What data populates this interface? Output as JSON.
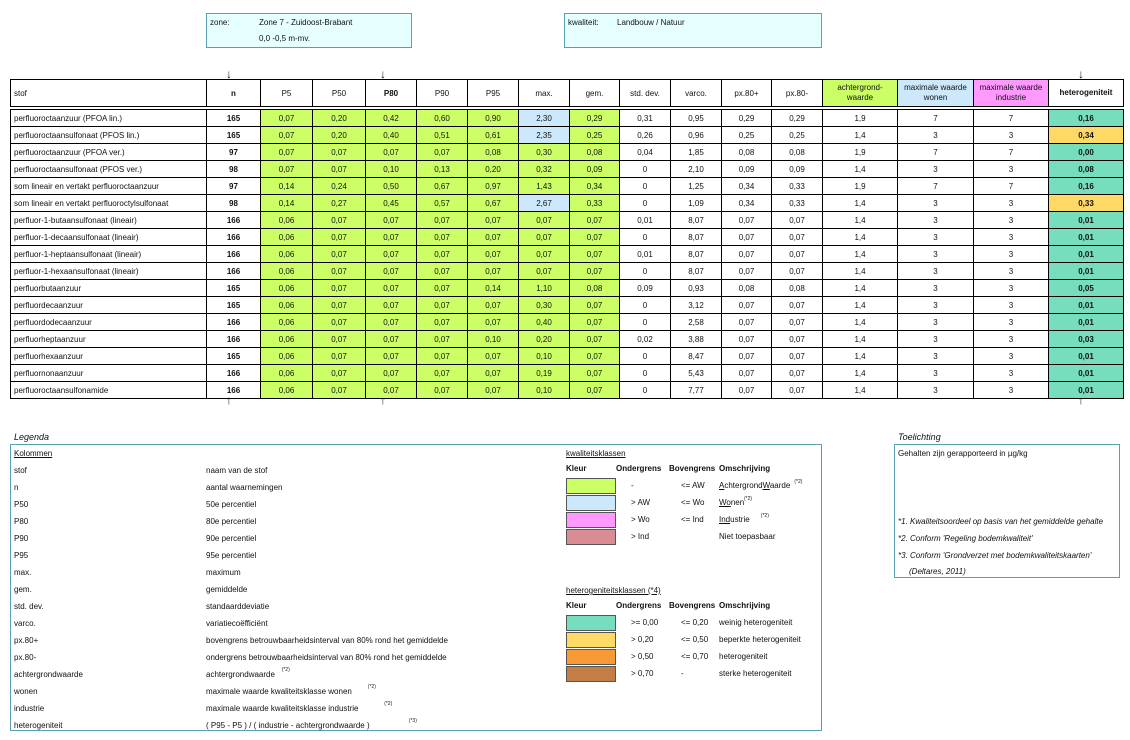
{
  "header": {
    "zone_label": "zone:",
    "zone_name": "Zone 7 - Zuidoost-Brabant",
    "zone_depth": "0,0 -0,5 m-mv.",
    "quality_label": "kwaliteit:",
    "quality_value": "Landbouw / Natuur"
  },
  "columns": [
    "stof",
    "n",
    "P5",
    "P50",
    "P80",
    "P90",
    "P95",
    "max.",
    "gem.",
    "std. dev.",
    "varco.",
    "px.80+",
    "px.80-",
    "achtergrond-waarde",
    "maximale waarde wonen",
    "maximale waarde industrie",
    "heterogeniteit"
  ],
  "rows": [
    [
      "perfluoroctaanzuur (PFOA lin.)",
      "165",
      "0,07",
      "0,20",
      "0,42",
      "0,60",
      "0,90",
      "2,30",
      "0,29",
      "0,31",
      "0,95",
      "0,29",
      "0,29",
      "1,9",
      "7",
      "7",
      "0,16"
    ],
    [
      "perfluoroctaansulfonaat (PFOS lin.)",
      "165",
      "0,07",
      "0,20",
      "0,40",
      "0,51",
      "0,61",
      "2,35",
      "0,25",
      "0,26",
      "0,96",
      "0,25",
      "0,25",
      "1,4",
      "3",
      "3",
      "0,34"
    ],
    [
      "perfluoroctaanzuur (PFOA ver.)",
      "97",
      "0,07",
      "0,07",
      "0,07",
      "0,07",
      "0,08",
      "0,30",
      "0,08",
      "0,04",
      "1,85",
      "0,08",
      "0,08",
      "1,9",
      "7",
      "7",
      "0,00"
    ],
    [
      "perfluoroctaansulfonaat (PFOS ver.)",
      "98",
      "0,07",
      "0,07",
      "0,10",
      "0,13",
      "0,20",
      "0,32",
      "0,09",
      "0",
      "2,10",
      "0,09",
      "0,09",
      "1,4",
      "3",
      "3",
      "0,08"
    ],
    [
      "som lineair en vertakt perfluoroctaanzuur",
      "97",
      "0,14",
      "0,24",
      "0,50",
      "0,67",
      "0,97",
      "1,43",
      "0,34",
      "0",
      "1,25",
      "0,34",
      "0,33",
      "1,9",
      "7",
      "7",
      "0,16"
    ],
    [
      "som lineair en vertakt perfluoroctylsulfonaat",
      "98",
      "0,14",
      "0,27",
      "0,45",
      "0,57",
      "0,67",
      "2,67",
      "0,33",
      "0",
      "1,09",
      "0,34",
      "0,33",
      "1,4",
      "3",
      "3",
      "0,33"
    ],
    [
      "perfluor-1-butaansulfonaat (lineair)",
      "166",
      "0,06",
      "0,07",
      "0,07",
      "0,07",
      "0,07",
      "0,07",
      "0,07",
      "0,01",
      "8,07",
      "0,07",
      "0,07",
      "1,4",
      "3",
      "3",
      "0,01"
    ],
    [
      "perfluor-1-decaansulfonaat (lineair)",
      "166",
      "0,06",
      "0,07",
      "0,07",
      "0,07",
      "0,07",
      "0,07",
      "0,07",
      "0",
      "8,07",
      "0,07",
      "0,07",
      "1,4",
      "3",
      "3",
      "0,01"
    ],
    [
      "perfluor-1-heptaansulfonaat  (lineair)",
      "166",
      "0,06",
      "0,07",
      "0,07",
      "0,07",
      "0,07",
      "0,07",
      "0,07",
      "0,01",
      "8,07",
      "0,07",
      "0,07",
      "1,4",
      "3",
      "3",
      "0,01"
    ],
    [
      "perfluor-1-hexaansulfonaat (lineair)",
      "166",
      "0,06",
      "0,07",
      "0,07",
      "0,07",
      "0,07",
      "0,07",
      "0,07",
      "0",
      "8,07",
      "0,07",
      "0,07",
      "1,4",
      "3",
      "3",
      "0,01"
    ],
    [
      "perfluorbutaanzuur",
      "165",
      "0,06",
      "0,07",
      "0,07",
      "0,07",
      "0,14",
      "1,10",
      "0,08",
      "0,09",
      "0,93",
      "0,08",
      "0,08",
      "1,4",
      "3",
      "3",
      "0,05"
    ],
    [
      "perfluordecaanzuur",
      "165",
      "0,06",
      "0,07",
      "0,07",
      "0,07",
      "0,07",
      "0,30",
      "0,07",
      "0",
      "3,12",
      "0,07",
      "0,07",
      "1,4",
      "3",
      "3",
      "0,01"
    ],
    [
      "perfluordodecaanzuur",
      "166",
      "0,06",
      "0,07",
      "0,07",
      "0,07",
      "0,07",
      "0,40",
      "0,07",
      "0",
      "2,58",
      "0,07",
      "0,07",
      "1,4",
      "3",
      "3",
      "0,01"
    ],
    [
      "perfluorheptaanzuur",
      "166",
      "0,06",
      "0,07",
      "0,07",
      "0,07",
      "0,10",
      "0,20",
      "0,07",
      "0,02",
      "3,88",
      "0,07",
      "0,07",
      "1,4",
      "3",
      "3",
      "0,03"
    ],
    [
      "perfluorhexaanzuur",
      "165",
      "0,06",
      "0,07",
      "0,07",
      "0,07",
      "0,07",
      "0,10",
      "0,07",
      "0",
      "8,47",
      "0,07",
      "0,07",
      "1,4",
      "3",
      "3",
      "0,01"
    ],
    [
      "perfluornonaanzuur",
      "166",
      "0,06",
      "0,07",
      "0,07",
      "0,07",
      "0,07",
      "0,19",
      "0,07",
      "0",
      "5,43",
      "0,07",
      "0,07",
      "1,4",
      "3",
      "3",
      "0,01"
    ],
    [
      "perfluoroctaansulfonamide",
      "166",
      "0,06",
      "0,07",
      "0,07",
      "0,07",
      "0,07",
      "0,10",
      "0,07",
      "0",
      "7,77",
      "0,07",
      "0,07",
      "1,4",
      "3",
      "3",
      "0,01"
    ]
  ],
  "max_highlight": [
    "lb",
    "lb",
    "",
    "",
    "",
    "lb",
    "",
    "",
    "",
    "",
    "",
    "",
    "",
    "",
    "",
    "",
    ""
  ],
  "het_highlight": [
    "tq",
    "yl",
    "tq",
    "tq",
    "tq",
    "yl",
    "tq",
    "tq",
    "tq",
    "tq",
    "tq",
    "tq",
    "tq",
    "tq",
    "tq",
    "tq",
    "tq"
  ],
  "arrows": {
    "down": "↓",
    "up": "↑"
  },
  "legend": {
    "title": "Legenda",
    "kolommen_title": "Kolommen",
    "items": [
      [
        "stof",
        "naam van de stof",
        ""
      ],
      [
        "n",
        "aantal waarnemingen",
        ""
      ],
      [
        "P50",
        "50e percentiel",
        ""
      ],
      [
        "P80",
        "80e percentiel",
        ""
      ],
      [
        "P90",
        "90e percentiel",
        ""
      ],
      [
        "P95",
        "95e percentiel",
        ""
      ],
      [
        "max.",
        "maximum",
        ""
      ],
      [
        "gem.",
        "gemiddelde",
        ""
      ],
      [
        "std. dev.",
        "standaarddeviatie",
        ""
      ],
      [
        "varco.",
        "variatiecoëfficiënt",
        ""
      ],
      [
        "px.80+",
        "bovengrens betrouwbaarheidsinterval van 80% rond het gemiddelde",
        ""
      ],
      [
        "px.80-",
        "ondergrens betrouwbaarheidsinterval van 80% rond het gemiddelde",
        ""
      ],
      [
        "achtergrondwaarde",
        "achtergrondwaarde",
        "(*2)"
      ],
      [
        "wonen",
        "maximale waarde kwaliteitsklasse wonen",
        "(*2)"
      ],
      [
        "industrie",
        "maximale waarde kwaliteitsklasse industrie",
        "(*2)"
      ],
      [
        "heterogeniteit",
        "( P95 - P5 ) / ( industrie - achtergrondwaarde )",
        "(*3)"
      ]
    ],
    "kwal_title": "kwaliteitsklassen",
    "kwal_headers": [
      "Kleur",
      "Ondergrens",
      "Bovengrens",
      "Omschrijving"
    ],
    "kwal_rows": [
      {
        "color": "#ccff66",
        "onder": "-",
        "boven": "<= AW",
        "omschr": "AchtergrondWaarde",
        "note": "(*2)"
      },
      {
        "color": "#cce8fa",
        "onder": "> AW",
        "boven": "<= Wo",
        "omschr": "Wonen",
        "note": "(*2)"
      },
      {
        "color": "#ff99ff",
        "onder": "> Wo",
        "boven": "<= Ind",
        "omschr": "Industrie",
        "note": "(*2)"
      },
      {
        "color": "#d98c94",
        "onder": "> Ind",
        "boven": "",
        "omschr": "Niet toepasbaar",
        "note": ""
      }
    ],
    "het_title": "heterogeniteitsklassen (*4)",
    "het_headers": [
      "Kleur",
      "Ondergrens",
      "Bovengrens",
      "Omschrijving"
    ],
    "het_rows": [
      {
        "color": "#77ddbf",
        "onder": ">= 0,00",
        "boven": "<= 0,20",
        "omschr": "weinig heterogeniteit"
      },
      {
        "color": "#ffd966",
        "onder": "> 0,20",
        "boven": "<= 0,50",
        "omschr": "beperkte heterogeniteit"
      },
      {
        "color": "#f79a35",
        "onder": "> 0,50",
        "boven": "<= 0,70",
        "omschr": "heterogeniteit"
      },
      {
        "color": "#c27e44",
        "onder": "> 0,70",
        "boven": "-",
        "omschr": "sterke heterogeniteit"
      }
    ]
  },
  "toelichting": {
    "title": "Toelichting",
    "text": "Gehalten zijn gerapporteerd in µg/kg",
    "notes": [
      "*1. Kwaliteitsoordeel op basis van het gemiddelde  gehalte",
      "*2. Conform 'Regeling  bodemkwaliteit'",
      "*3. Conform 'Grondverzet met  bodemkwaliteitskaarten'",
      "(Deltares, 2011)"
    ]
  }
}
